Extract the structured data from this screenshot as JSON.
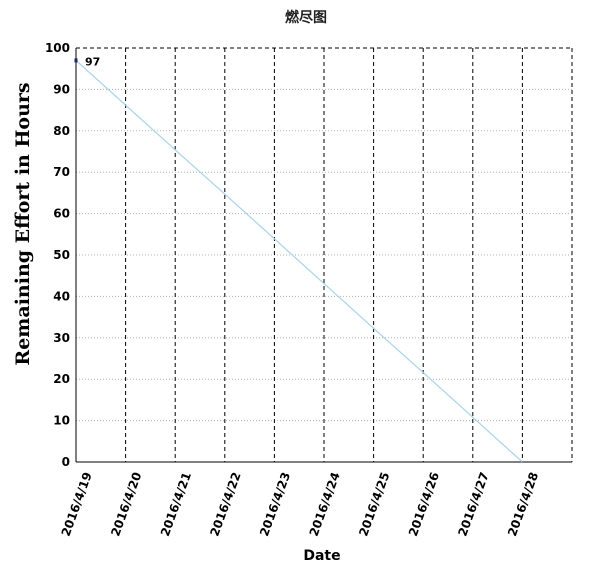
{
  "chart_data": {
    "type": "line",
    "title": "燃尽图",
    "xlabel": "Date",
    "ylabel": "Remaining Effort in Hours",
    "categories": [
      "2016/4/19",
      "2016/4/20",
      "2016/4/21",
      "2016/4/22",
      "2016/4/23",
      "2016/4/24",
      "2016/4/25",
      "2016/4/26",
      "2016/4/27",
      "2016/4/28"
    ],
    "ylim": [
      0,
      100
    ],
    "yticks": [
      0,
      10,
      20,
      30,
      40,
      50,
      60,
      70,
      80,
      90,
      100
    ],
    "series": [
      {
        "values": [
          97,
          86.2,
          75.4,
          64.7,
          53.9,
          43.1,
          32.3,
          21.6,
          10.8,
          0
        ],
        "color": "#a8d4e8"
      }
    ],
    "point_labels": [
      {
        "index": 0,
        "text": "97"
      }
    ],
    "grid": {
      "vertical": "dashed",
      "horizontal": "dotted"
    },
    "colors": {
      "axis": "#000000",
      "grid_vertical": "#000000",
      "grid_horizontal": "#b0b0b0",
      "marker": "#1a2a6c"
    }
  }
}
